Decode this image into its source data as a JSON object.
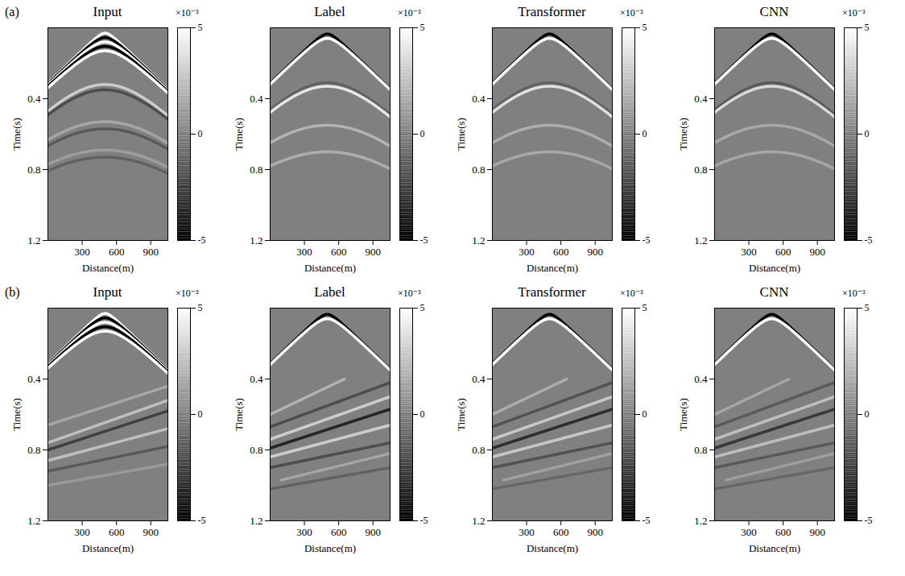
{
  "chart_data": [
    {
      "type": "seismic",
      "panel_label": "(a)",
      "title": "Input",
      "xlabel": "Distance(m)",
      "ylabel": "Time(s)",
      "xlim": [
        0,
        1050
      ],
      "xticks": [
        300,
        600,
        900
      ],
      "ylim": [
        0,
        1.2
      ],
      "yticks": [
        0.4,
        0.8,
        1.2
      ],
      "colorbar": {
        "range": [
          -5,
          5
        ],
        "ticks": [
          -5,
          0,
          5
        ],
        "label": "×10⁻³"
      },
      "events": [
        {
          "kind": "hyperbola",
          "x0": 500,
          "t0": 0.03,
          "velocity": 1600,
          "amplitude": 5
        },
        {
          "kind": "hyperbola",
          "x0": 500,
          "t0": 0.055,
          "velocity": 1600,
          "amplitude": -5
        },
        {
          "kind": "hyperbola",
          "x0": 500,
          "t0": 0.08,
          "velocity": 1600,
          "amplitude": 5
        },
        {
          "kind": "hyperbola",
          "x0": 500,
          "t0": 0.105,
          "velocity": 1600,
          "amplitude": -5
        },
        {
          "kind": "hyperbola",
          "x0": 500,
          "t0": 0.13,
          "velocity": 1600,
          "amplitude": 5
        },
        {
          "kind": "hyperbola",
          "x0": 500,
          "t0": 0.32,
          "velocity": 1450,
          "amplitude": 3
        },
        {
          "kind": "hyperbola",
          "x0": 500,
          "t0": 0.35,
          "velocity": 1450,
          "amplitude": -2
        },
        {
          "kind": "hyperbola",
          "x0": 500,
          "t0": 0.53,
          "velocity": 1450,
          "amplitude": 1.5
        },
        {
          "kind": "hyperbola",
          "x0": 500,
          "t0": 0.57,
          "velocity": 1450,
          "amplitude": -1.5
        },
        {
          "kind": "hyperbola",
          "x0": 500,
          "t0": 0.69,
          "velocity": 1450,
          "amplitude": 1.2
        },
        {
          "kind": "hyperbola",
          "x0": 500,
          "t0": 0.73,
          "velocity": 1450,
          "amplitude": -1.2
        }
      ]
    },
    {
      "type": "seismic",
      "title": "Label",
      "xlabel": "Distance(m)",
      "ylabel": "Time(s)",
      "xlim": [
        0,
        1050
      ],
      "xticks": [
        300,
        600,
        900
      ],
      "ylim": [
        0,
        1.2
      ],
      "yticks": [
        0.4,
        0.8,
        1.2
      ],
      "colorbar": {
        "range": [
          -5,
          5
        ],
        "ticks": [
          -5,
          0,
          5
        ],
        "label": "×10⁻³"
      },
      "events": [
        {
          "kind": "hyperbola",
          "x0": 500,
          "t0": 0.035,
          "velocity": 1600,
          "amplitude": -5
        },
        {
          "kind": "hyperbola",
          "x0": 500,
          "t0": 0.06,
          "velocity": 1600,
          "amplitude": 5
        },
        {
          "kind": "hyperbola",
          "x0": 500,
          "t0": 0.31,
          "velocity": 1450,
          "amplitude": -1.2
        },
        {
          "kind": "hyperbola",
          "x0": 500,
          "t0": 0.33,
          "velocity": 1450,
          "amplitude": 4
        },
        {
          "kind": "hyperbola",
          "x0": 500,
          "t0": 0.55,
          "velocity": 1450,
          "amplitude": 2
        },
        {
          "kind": "hyperbola",
          "x0": 500,
          "t0": 0.7,
          "velocity": 1450,
          "amplitude": 1.8
        }
      ]
    },
    {
      "type": "seismic",
      "title": "Transformer",
      "xlabel": "Distance(m)",
      "ylabel": "Time(s)",
      "xlim": [
        0,
        1050
      ],
      "xticks": [
        300,
        600,
        900
      ],
      "ylim": [
        0,
        1.2
      ],
      "yticks": [
        0.4,
        0.8,
        1.2
      ],
      "colorbar": {
        "range": [
          -5,
          5
        ],
        "ticks": [
          -5,
          0,
          5
        ],
        "label": "×10⁻³"
      },
      "events": [
        {
          "kind": "hyperbola",
          "x0": 500,
          "t0": 0.035,
          "velocity": 1600,
          "amplitude": -5
        },
        {
          "kind": "hyperbola",
          "x0": 500,
          "t0": 0.06,
          "velocity": 1600,
          "amplitude": 5
        },
        {
          "kind": "hyperbola",
          "x0": 500,
          "t0": 0.31,
          "velocity": 1450,
          "amplitude": -1.2
        },
        {
          "kind": "hyperbola",
          "x0": 500,
          "t0": 0.33,
          "velocity": 1450,
          "amplitude": 3.8
        },
        {
          "kind": "hyperbola",
          "x0": 500,
          "t0": 0.55,
          "velocity": 1450,
          "amplitude": 1.8
        },
        {
          "kind": "hyperbola",
          "x0": 500,
          "t0": 0.7,
          "velocity": 1450,
          "amplitude": 1.6
        }
      ]
    },
    {
      "type": "seismic",
      "title": "CNN",
      "xlabel": "Distance(m)",
      "ylabel": "Time(s)",
      "xlim": [
        0,
        1050
      ],
      "xticks": [
        300,
        600,
        900
      ],
      "ylim": [
        0,
        1.2
      ],
      "yticks": [
        0.4,
        0.8,
        1.2
      ],
      "colorbar": {
        "range": [
          -5,
          5
        ],
        "ticks": [
          -5,
          0,
          5
        ],
        "label": "×10⁻³"
      },
      "events": [
        {
          "kind": "hyperbola",
          "x0": 500,
          "t0": 0.035,
          "velocity": 1600,
          "amplitude": -5
        },
        {
          "kind": "hyperbola",
          "x0": 500,
          "t0": 0.06,
          "velocity": 1600,
          "amplitude": 5
        },
        {
          "kind": "hyperbola",
          "x0": 500,
          "t0": 0.31,
          "velocity": 1450,
          "amplitude": -1.5
        },
        {
          "kind": "hyperbola",
          "x0": 500,
          "t0": 0.33,
          "velocity": 1450,
          "amplitude": 3.5
        },
        {
          "kind": "hyperbola",
          "x0": 500,
          "t0": 0.55,
          "velocity": 1450,
          "amplitude": 1.6
        },
        {
          "kind": "hyperbola",
          "x0": 500,
          "t0": 0.7,
          "velocity": 1450,
          "amplitude": 1.5
        }
      ]
    },
    {
      "type": "seismic",
      "panel_label": "(b)",
      "title": "Input",
      "xlabel": "Distance(m)",
      "ylabel": "Time(s)",
      "xlim": [
        0,
        1050
      ],
      "xticks": [
        300,
        600,
        900
      ],
      "ylim": [
        0,
        1.2
      ],
      "yticks": [
        0.4,
        0.8,
        1.2
      ],
      "colorbar": {
        "range": [
          -5,
          5
        ],
        "ticks": [
          -5,
          0,
          5
        ],
        "label": "×10⁻³"
      },
      "events": [
        {
          "kind": "hyperbola",
          "x0": 500,
          "t0": 0.03,
          "velocity": 1600,
          "amplitude": 5
        },
        {
          "kind": "hyperbola",
          "x0": 500,
          "t0": 0.055,
          "velocity": 1600,
          "amplitude": -5
        },
        {
          "kind": "hyperbola",
          "x0": 500,
          "t0": 0.08,
          "velocity": 1600,
          "amplitude": 5
        },
        {
          "kind": "hyperbola",
          "x0": 500,
          "t0": 0.105,
          "velocity": 1600,
          "amplitude": -5
        },
        {
          "kind": "hyperbola",
          "x0": 500,
          "t0": 0.13,
          "velocity": 1600,
          "amplitude": 5
        },
        {
          "kind": "segment",
          "x": [
            0,
            1050
          ],
          "t": [
            0.66,
            0.44
          ],
          "amplitude": 1.5
        },
        {
          "kind": "segment",
          "x": [
            0,
            1050
          ],
          "t": [
            0.76,
            0.52
          ],
          "amplitude": 2.5
        },
        {
          "kind": "segment",
          "x": [
            0,
            1050
          ],
          "t": [
            0.8,
            0.58
          ],
          "amplitude": -2.5
        },
        {
          "kind": "segment",
          "x": [
            0,
            1050
          ],
          "t": [
            0.86,
            0.68
          ],
          "amplitude": 2.5
        },
        {
          "kind": "segment",
          "x": [
            0,
            1050
          ],
          "t": [
            0.92,
            0.78
          ],
          "amplitude": -1.5
        },
        {
          "kind": "segment",
          "x": [
            0,
            1050
          ],
          "t": [
            1.0,
            0.88
          ],
          "amplitude": 1
        }
      ]
    },
    {
      "type": "seismic",
      "title": "Label",
      "xlabel": "Distance(m)",
      "ylabel": "Time(s)",
      "xlim": [
        0,
        1050
      ],
      "xticks": [
        300,
        600,
        900
      ],
      "ylim": [
        0,
        1.2
      ],
      "yticks": [
        0.4,
        0.8,
        1.2
      ],
      "colorbar": {
        "range": [
          -5,
          5
        ],
        "ticks": [
          -5,
          0,
          5
        ],
        "label": "×10⁻³"
      },
      "events": [
        {
          "kind": "hyperbola",
          "x0": 500,
          "t0": 0.035,
          "velocity": 1600,
          "amplitude": -5
        },
        {
          "kind": "hyperbola",
          "x0": 500,
          "t0": 0.06,
          "velocity": 1600,
          "amplitude": 5
        },
        {
          "kind": "segment",
          "x": [
            0,
            650
          ],
          "t": [
            0.6,
            0.4
          ],
          "amplitude": 2
        },
        {
          "kind": "segment",
          "x": [
            0,
            1050
          ],
          "t": [
            0.67,
            0.42
          ],
          "amplitude": -2
        },
        {
          "kind": "segment",
          "x": [
            0,
            1050
          ],
          "t": [
            0.74,
            0.5
          ],
          "amplitude": 3
        },
        {
          "kind": "segment",
          "x": [
            0,
            1050
          ],
          "t": [
            0.79,
            0.57
          ],
          "amplitude": -3.5
        },
        {
          "kind": "segment",
          "x": [
            0,
            1050
          ],
          "t": [
            0.84,
            0.66
          ],
          "amplitude": 3
        },
        {
          "kind": "segment",
          "x": [
            0,
            1050
          ],
          "t": [
            0.9,
            0.76
          ],
          "amplitude": -2
        },
        {
          "kind": "segment",
          "x": [
            100,
            1050
          ],
          "t": [
            0.97,
            0.82
          ],
          "amplitude": 1.5
        },
        {
          "kind": "segment",
          "x": [
            0,
            1050
          ],
          "t": [
            1.02,
            0.9
          ],
          "amplitude": -1.2
        }
      ]
    },
    {
      "type": "seismic",
      "title": "Transformer",
      "xlabel": "Distance(m)",
      "ylabel": "Time(s)",
      "xlim": [
        0,
        1050
      ],
      "xticks": [
        300,
        600,
        900
      ],
      "ylim": [
        0,
        1.2
      ],
      "yticks": [
        0.4,
        0.8,
        1.2
      ],
      "colorbar": {
        "range": [
          -5,
          5
        ],
        "ticks": [
          -5,
          0,
          5
        ],
        "label": "×10⁻³"
      },
      "events": [
        {
          "kind": "hyperbola",
          "x0": 500,
          "t0": 0.035,
          "velocity": 1600,
          "amplitude": -5
        },
        {
          "kind": "hyperbola",
          "x0": 500,
          "t0": 0.06,
          "velocity": 1600,
          "amplitude": 5
        },
        {
          "kind": "segment",
          "x": [
            0,
            650
          ],
          "t": [
            0.6,
            0.4
          ],
          "amplitude": 1.8
        },
        {
          "kind": "segment",
          "x": [
            0,
            1050
          ],
          "t": [
            0.67,
            0.42
          ],
          "amplitude": -1.8
        },
        {
          "kind": "segment",
          "x": [
            0,
            1050
          ],
          "t": [
            0.74,
            0.5
          ],
          "amplitude": 2.8
        },
        {
          "kind": "segment",
          "x": [
            0,
            1050
          ],
          "t": [
            0.79,
            0.57
          ],
          "amplitude": -3.2
        },
        {
          "kind": "segment",
          "x": [
            0,
            1050
          ],
          "t": [
            0.84,
            0.66
          ],
          "amplitude": 2.8
        },
        {
          "kind": "segment",
          "x": [
            0,
            1050
          ],
          "t": [
            0.9,
            0.76
          ],
          "amplitude": -1.8
        },
        {
          "kind": "segment",
          "x": [
            100,
            1050
          ],
          "t": [
            0.97,
            0.82
          ],
          "amplitude": 1.3
        },
        {
          "kind": "segment",
          "x": [
            0,
            1050
          ],
          "t": [
            1.02,
            0.9
          ],
          "amplitude": -1
        }
      ]
    },
    {
      "type": "seismic",
      "title": "CNN",
      "xlabel": "Distance(m)",
      "ylabel": "Time(s)",
      "xlim": [
        0,
        1050
      ],
      "xticks": [
        300,
        600,
        900
      ],
      "ylim": [
        0,
        1.2
      ],
      "yticks": [
        0.4,
        0.8,
        1.2
      ],
      "colorbar": {
        "range": [
          -5,
          5
        ],
        "ticks": [
          -5,
          0,
          5
        ],
        "label": "×10⁻³"
      },
      "events": [
        {
          "kind": "hyperbola",
          "x0": 500,
          "t0": 0.035,
          "velocity": 1600,
          "amplitude": -5
        },
        {
          "kind": "hyperbola",
          "x0": 500,
          "t0": 0.06,
          "velocity": 1600,
          "amplitude": 5
        },
        {
          "kind": "segment",
          "x": [
            0,
            650
          ],
          "t": [
            0.6,
            0.4
          ],
          "amplitude": 1.5
        },
        {
          "kind": "segment",
          "x": [
            0,
            1050
          ],
          "t": [
            0.67,
            0.42
          ],
          "amplitude": -1.5
        },
        {
          "kind": "segment",
          "x": [
            0,
            1050
          ],
          "t": [
            0.74,
            0.5
          ],
          "amplitude": 2.5
        },
        {
          "kind": "segment",
          "x": [
            0,
            1050
          ],
          "t": [
            0.79,
            0.57
          ],
          "amplitude": -2.8
        },
        {
          "kind": "segment",
          "x": [
            0,
            1050
          ],
          "t": [
            0.84,
            0.66
          ],
          "amplitude": 2.4
        },
        {
          "kind": "segment",
          "x": [
            0,
            1050
          ],
          "t": [
            0.9,
            0.76
          ],
          "amplitude": -1.5
        },
        {
          "kind": "segment",
          "x": [
            100,
            1050
          ],
          "t": [
            0.97,
            0.82
          ],
          "amplitude": 1.2
        },
        {
          "kind": "segment",
          "x": [
            0,
            1050
          ],
          "t": [
            1.02,
            0.9
          ],
          "amplitude": -1
        }
      ]
    }
  ]
}
